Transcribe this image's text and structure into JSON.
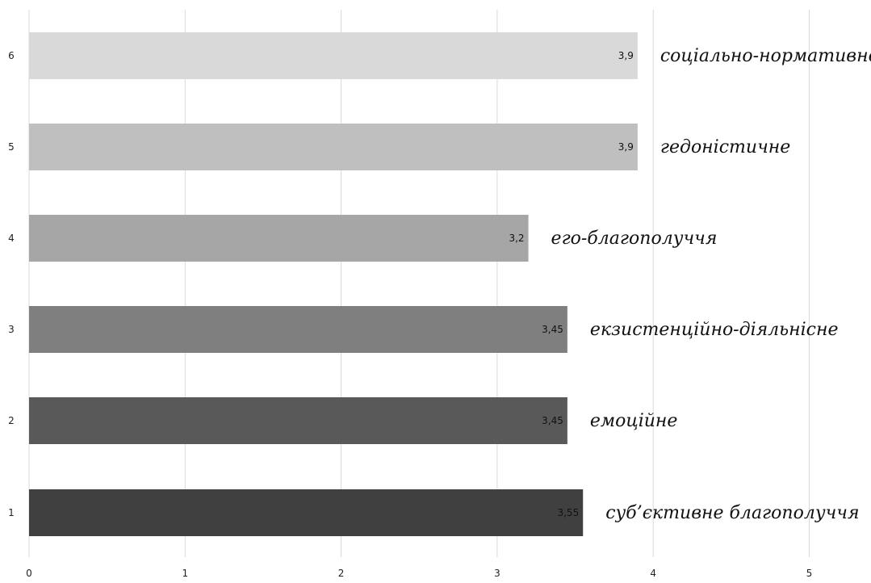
{
  "chart_data": {
    "type": "bar",
    "orientation": "horizontal",
    "categories": [
      "1",
      "2",
      "3",
      "4",
      "5",
      "6"
    ],
    "values": [
      3.55,
      3.45,
      3.45,
      3.2,
      3.9,
      3.9
    ],
    "value_labels": [
      "3,55",
      "3,45",
      "3,45",
      "3,2",
      "3,9",
      "3,9"
    ],
    "bar_names": [
      "суб’єктивне благополуччя",
      "емоційне",
      "екзистенційно-діяльнісне",
      "его-благополуччя",
      "гедоністичне",
      "соціально-нормативне"
    ],
    "bar_colors": [
      "#404040",
      "#595959",
      "#7f7f7f",
      "#a6a6a6",
      "#bfbfbf",
      "#d9d9d9"
    ],
    "x_ticks": [
      0,
      1,
      2,
      3,
      4,
      5
    ],
    "xlim": [
      0,
      5
    ],
    "grid": "vertical",
    "title": "",
    "xlabel": "",
    "ylabel": ""
  }
}
